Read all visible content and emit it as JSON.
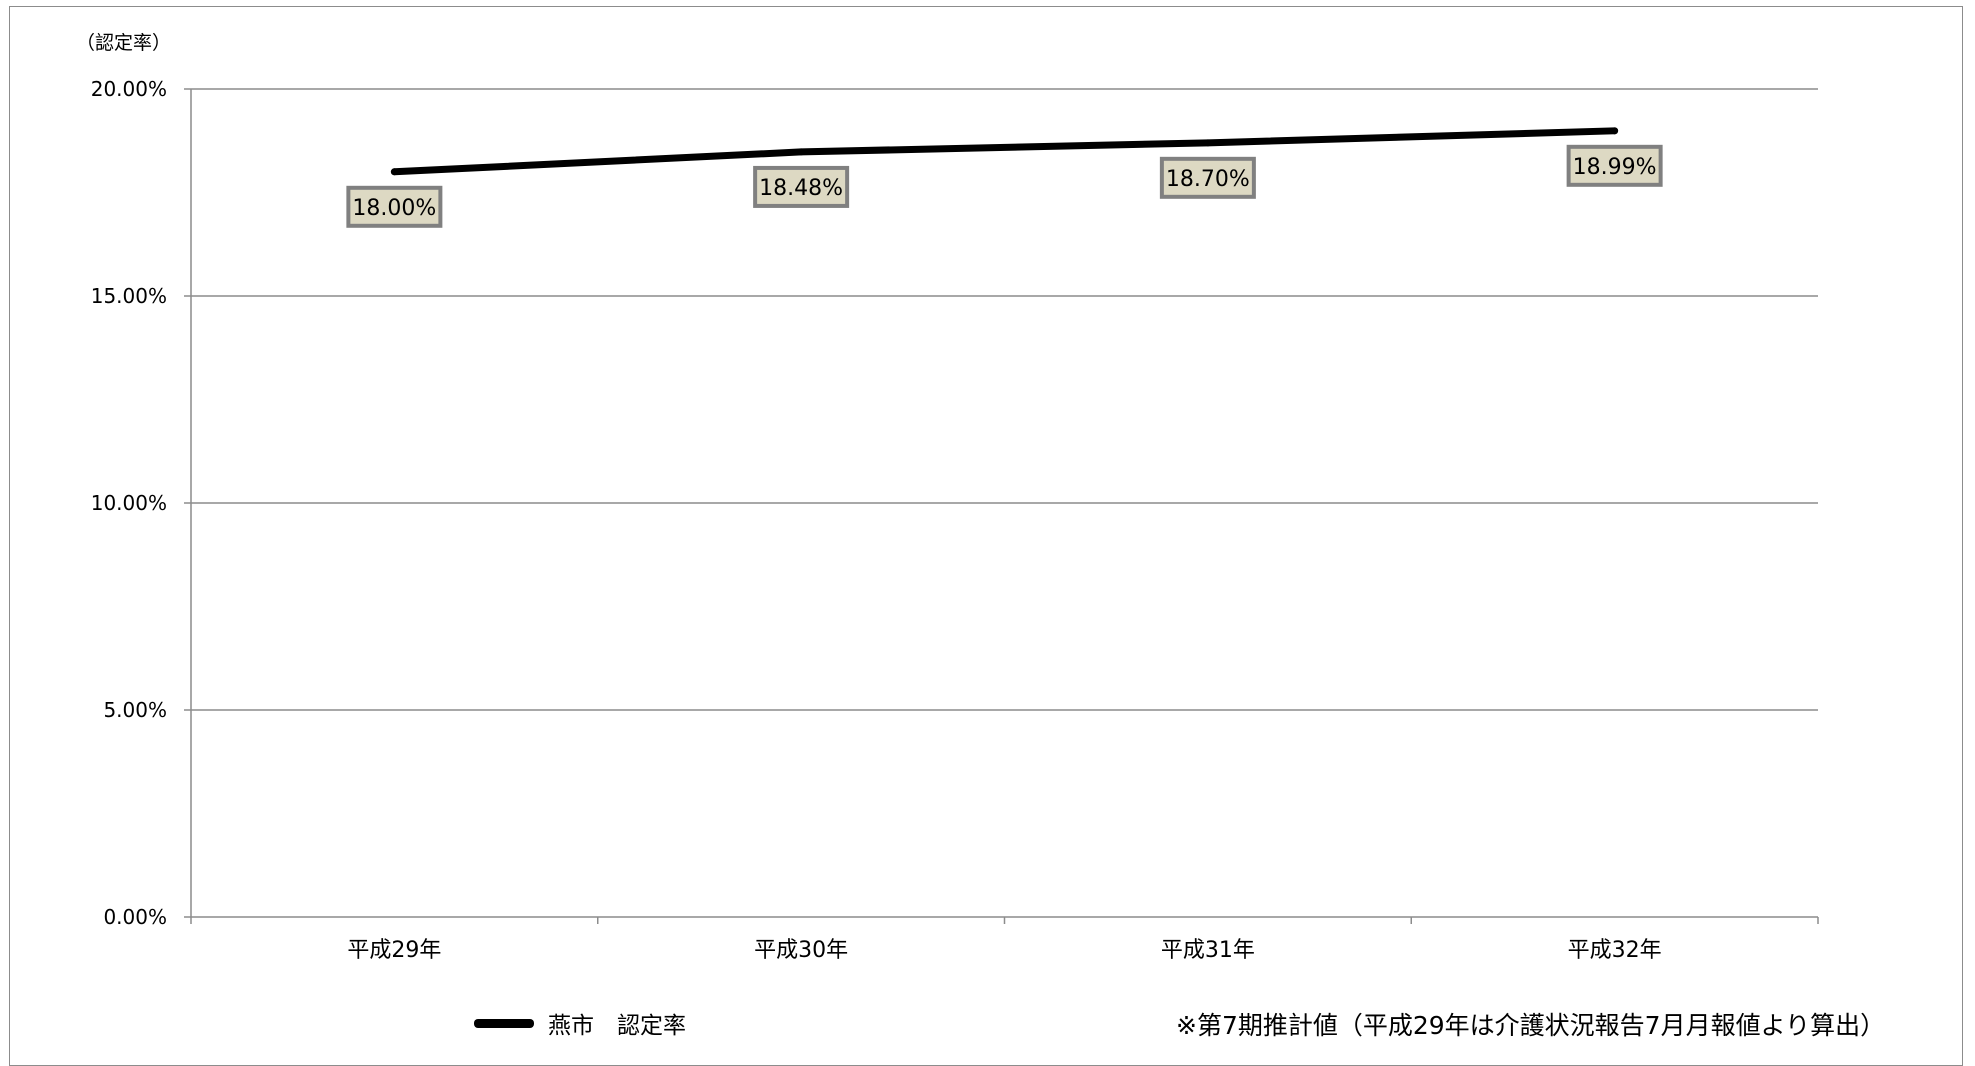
{
  "chart_data": {
    "type": "line",
    "categories": [
      "平成29年",
      "平成30年",
      "平成31年",
      "平成32年"
    ],
    "series": [
      {
        "name": "燕市　認定率",
        "values": [
          18.0,
          18.48,
          18.7,
          18.99
        ],
        "color": "#000000"
      }
    ],
    "data_labels": [
      "18.00%",
      "18.48%",
      "18.70%",
      "18.99%"
    ],
    "y_unit": "（認定率）",
    "yticks": [
      0,
      5,
      10,
      15,
      20
    ],
    "ytick_labels": [
      "0.00%",
      "5.00%",
      "10.00%",
      "15.00%",
      "20.00%"
    ],
    "ylim": [
      0,
      20
    ],
    "grid": true,
    "legend": "bottom-left",
    "label_box": {
      "fill": "#ddd9c3",
      "border": "#808080"
    },
    "note": "※第7期推計値（平成29年は介護状況報告7月月報値より算出）"
  }
}
